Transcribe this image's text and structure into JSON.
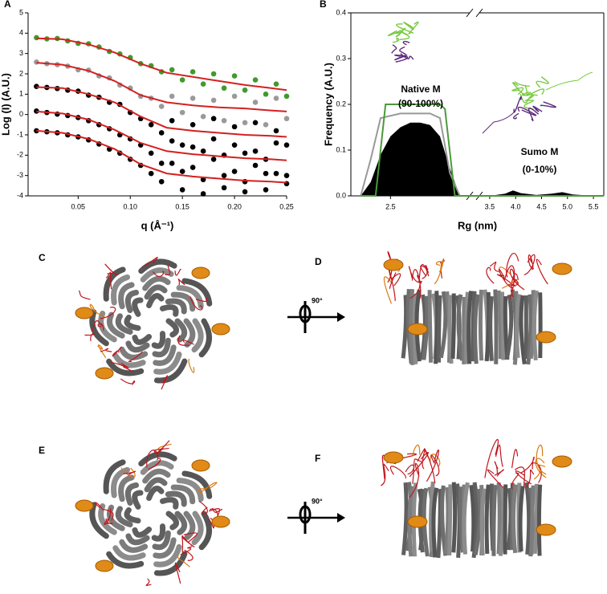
{
  "chart_data": [
    {
      "panel": "A",
      "type": "scatter",
      "y_label": "Log (I) (A.U.)",
      "x_label": "q (Å⁻¹)",
      "xlim": [
        0.002,
        0.25
      ],
      "ylim": [
        -4,
        5
      ],
      "xticks": [
        0.05,
        {
          "value": 0.1,
          "label": "0.10"
        },
        0.15,
        {
          "value": 0.2,
          "label": "0.20"
        },
        0.25
      ],
      "yticks": [
        -4,
        -3,
        -2,
        -1,
        0,
        1,
        2,
        3,
        4,
        5
      ],
      "series": [
        {
          "type": "scatter",
          "color": "#3f9b2b",
          "x": [
            0.01,
            0.02,
            0.03,
            0.04,
            0.05,
            0.06,
            0.07,
            0.08,
            0.09,
            0.1,
            0.11,
            0.12,
            0.13,
            0.14,
            0.15,
            0.16,
            0.17,
            0.18,
            0.19,
            0.2,
            0.21,
            0.22,
            0.23,
            0.24,
            0.25
          ],
          "values": [
            3.78,
            3.72,
            3.74,
            3.62,
            3.5,
            3.48,
            3.32,
            3.1,
            2.98,
            2.8,
            2.5,
            2.4,
            2.1,
            2.2,
            1.7,
            2.1,
            1.5,
            2.0,
            1.3,
            1.9,
            1.2,
            1.7,
            1.0,
            1.5,
            0.9
          ]
        },
        {
          "type": "scatter",
          "color": "#9a9a9a",
          "x": [
            0.01,
            0.02,
            0.03,
            0.04,
            0.05,
            0.06,
            0.07,
            0.08,
            0.09,
            0.1,
            0.11,
            0.12,
            0.13,
            0.14,
            0.15,
            0.16,
            0.17,
            0.18,
            0.19,
            0.2,
            0.21,
            0.22,
            0.23,
            0.24,
            0.25
          ],
          "values": [
            2.58,
            2.5,
            2.45,
            2.38,
            2.2,
            2.18,
            1.9,
            1.8,
            1.45,
            1.3,
            0.9,
            0.8,
            0.4,
            0.9,
            0.1,
            0.8,
            -0.1,
            0.7,
            -0.3,
            0.9,
            -0.4,
            0.6,
            -0.5,
            0.8,
            -0.2
          ]
        },
        {
          "type": "scatter",
          "color": "#000000",
          "x": [
            0.01,
            0.02,
            0.03,
            0.04,
            0.05,
            0.06,
            0.07,
            0.08,
            0.09,
            0.1,
            0.11,
            0.12,
            0.13,
            0.14,
            0.15,
            0.16,
            0.17,
            0.18,
            0.19,
            0.2,
            0.21,
            0.22,
            0.23,
            0.24,
            0.25
          ],
          "values": [
            1.38,
            1.33,
            1.28,
            1.2,
            1.15,
            0.95,
            0.85,
            0.6,
            0.5,
            0.1,
            -0.2,
            -0.5,
            -0.9,
            -0.3,
            -1.5,
            -0.5,
            -1.8,
            -0.2,
            -2.0,
            -0.6,
            -1.9,
            -0.4,
            -2.2,
            -0.8,
            -1.5
          ]
        },
        {
          "type": "scatter",
          "color": "#000000",
          "x": [
            0.01,
            0.02,
            0.03,
            0.04,
            0.05,
            0.06,
            0.07,
            0.08,
            0.09,
            0.1,
            0.11,
            0.12,
            0.13,
            0.14,
            0.15,
            0.16,
            0.17,
            0.18,
            0.19,
            0.2,
            0.21,
            0.22,
            0.23,
            0.24,
            0.25
          ],
          "values": [
            0.17,
            0.1,
            0.02,
            -0.05,
            -0.15,
            -0.3,
            -0.5,
            -0.7,
            -1.0,
            -1.2,
            -1.5,
            -1.9,
            -2.4,
            -1.3,
            -2.8,
            -1.6,
            -3.2,
            -1.2,
            -3.0,
            -1.5,
            -3.3,
            -1.8,
            -2.9,
            -1.4,
            -3.0
          ]
        },
        {
          "type": "scatter",
          "color": "#000000",
          "x": [
            0.01,
            0.02,
            0.03,
            0.04,
            0.05,
            0.06,
            0.07,
            0.08,
            0.09,
            0.1,
            0.11,
            0.12,
            0.13,
            0.14,
            0.15,
            0.16,
            0.17,
            0.18,
            0.19,
            0.2,
            0.21,
            0.22,
            0.23,
            0.24,
            0.25
          ],
          "values": [
            -0.8,
            -0.85,
            -0.9,
            -1.0,
            -1.1,
            -1.25,
            -1.45,
            -1.7,
            -1.9,
            -2.2,
            -2.5,
            -2.9,
            -3.3,
            -2.4,
            -3.7,
            -2.6,
            -3.9,
            -2.2,
            -3.6,
            -2.8,
            -3.8,
            -2.5,
            -3.7,
            -2.9,
            -3.4
          ]
        },
        {
          "type": "line",
          "color": "#d42020",
          "x": [
            0.01,
            0.035,
            0.06,
            0.085,
            0.11,
            0.135,
            0.16,
            0.185,
            0.21,
            0.235,
            0.25
          ],
          "values": [
            3.75,
            3.7,
            3.45,
            3.05,
            2.5,
            2.05,
            1.85,
            1.65,
            1.45,
            1.3,
            1.2
          ]
        },
        {
          "type": "line",
          "color": "#d42020",
          "x": [
            0.01,
            0.035,
            0.06,
            0.085,
            0.11,
            0.135,
            0.16,
            0.185,
            0.21,
            0.235,
            0.25
          ],
          "values": [
            2.55,
            2.45,
            2.15,
            1.65,
            0.95,
            0.6,
            0.45,
            0.35,
            0.3,
            0.2,
            0.15
          ]
        },
        {
          "type": "line",
          "color": "#d42020",
          "x": [
            0.01,
            0.035,
            0.06,
            0.085,
            0.11,
            0.135,
            0.16,
            0.185,
            0.21,
            0.235,
            0.25
          ],
          "values": [
            1.35,
            1.3,
            1.0,
            0.6,
            -0.1,
            -0.65,
            -0.8,
            -0.9,
            -1.0,
            -1.05,
            -1.1
          ]
        },
        {
          "type": "line",
          "color": "#d42020",
          "x": [
            0.01,
            0.035,
            0.06,
            0.085,
            0.11,
            0.135,
            0.16,
            0.185,
            0.21,
            0.235,
            0.25
          ],
          "values": [
            0.15,
            0.05,
            -0.25,
            -0.75,
            -1.4,
            -1.8,
            -1.95,
            -2.05,
            -2.15,
            -2.2,
            -2.25
          ]
        },
        {
          "type": "line",
          "color": "#d42020",
          "x": [
            0.01,
            0.035,
            0.06,
            0.085,
            0.11,
            0.135,
            0.16,
            0.185,
            0.21,
            0.235,
            0.25
          ],
          "values": [
            -0.8,
            -0.9,
            -1.2,
            -1.7,
            -2.45,
            -2.9,
            -3.05,
            -3.15,
            -3.25,
            -3.3,
            -3.35
          ]
        }
      ]
    },
    {
      "panel": "B",
      "type": "area",
      "y_label": "Frequency (A.U.)",
      "x_label": "Rg (nm)",
      "x_break": true,
      "xlim": [
        [
          2.1,
          3.3
        ],
        [
          3.3,
          5.7
        ]
      ],
      "ylim": [
        0,
        0.4
      ],
      "xticks": [
        2.5,
        3.5,
        {
          "value": 4.0,
          "label": "4.0"
        },
        4.5,
        {
          "value": 5.0,
          "label": "5.0"
        },
        5.5
      ],
      "yticks": [
        {
          "value": 0,
          "label": "0.0"
        },
        0.1,
        0.2,
        0.3,
        0.4
      ],
      "annotations": [
        "Native M",
        "(90-100%)",
        "Sumo M",
        "(0-10%)"
      ],
      "series": [
        {
          "type": "area",
          "color": "#000000",
          "x": [
            2.2,
            2.3,
            2.4,
            2.5,
            2.6,
            2.7,
            2.8,
            2.9,
            3.0,
            3.1,
            3.2,
            3.5,
            3.8,
            3.95,
            4.1,
            4.4,
            4.7,
            4.9,
            5.1,
            5.5,
            5.7
          ],
          "values": [
            0,
            0.03,
            0.09,
            0.13,
            0.15,
            0.16,
            0.16,
            0.155,
            0.13,
            0.06,
            0,
            0,
            0.005,
            0.012,
            0.006,
            0.002,
            0.005,
            0.008,
            0.003,
            0,
            0
          ]
        },
        {
          "type": "line",
          "color": "#999999",
          "x": [
            2.2,
            2.3,
            2.4,
            2.6,
            2.9,
            3.0,
            3.1,
            3.2,
            5.7
          ],
          "values": [
            0,
            0.08,
            0.17,
            0.18,
            0.18,
            0.17,
            0.05,
            0,
            0
          ]
        },
        {
          "type": "line",
          "color": "#4a9a3a",
          "x": [
            2.2,
            2.35,
            2.4,
            2.45,
            3.0,
            3.05,
            3.15,
            3.3,
            5.7
          ],
          "values": [
            0,
            0,
            0.1,
            0.2,
            0.2,
            0.19,
            0,
            0,
            0
          ]
        }
      ]
    }
  ],
  "structures": [
    {
      "panel": "C"
    },
    {
      "panel": "D",
      "rotation": "90°"
    },
    {
      "panel": "E"
    },
    {
      "panel": "F",
      "rotation": "90°"
    }
  ]
}
